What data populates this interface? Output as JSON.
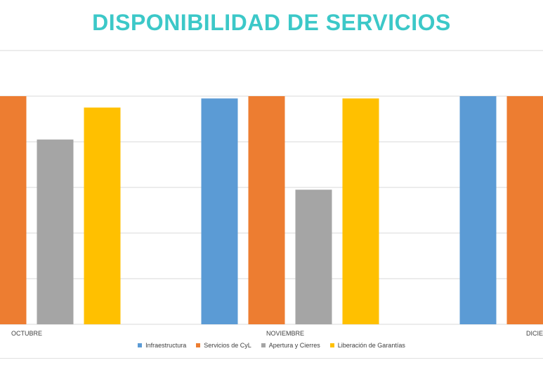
{
  "chart_data": {
    "type": "bar",
    "title": "DISPONIBILIDAD DE SERVICIOS",
    "title_color": "#3cc8c8",
    "categories": [
      "OCTUBRE",
      "NOVIEMBRE",
      "DICIEMBRE"
    ],
    "series": [
      {
        "name": "Infraestructura",
        "color": "#5b9bd5",
        "values": [
          null,
          99.5,
          100
        ]
      },
      {
        "name": "Servicios de CyL",
        "color": "#ed7d31",
        "values": [
          100,
          100,
          100
        ]
      },
      {
        "name": "Apertura y Cierres",
        "color": "#a5a5a5",
        "values": [
          90.5,
          79.5,
          null
        ]
      },
      {
        "name": "Liberación de Garantías",
        "color": "#ffc000",
        "values": [
          97.5,
          99.5,
          null
        ]
      }
    ],
    "ylim": [
      50,
      110
    ],
    "gridlines": true,
    "legend_position": "bottom",
    "xlabel": "",
    "ylabel": ""
  }
}
